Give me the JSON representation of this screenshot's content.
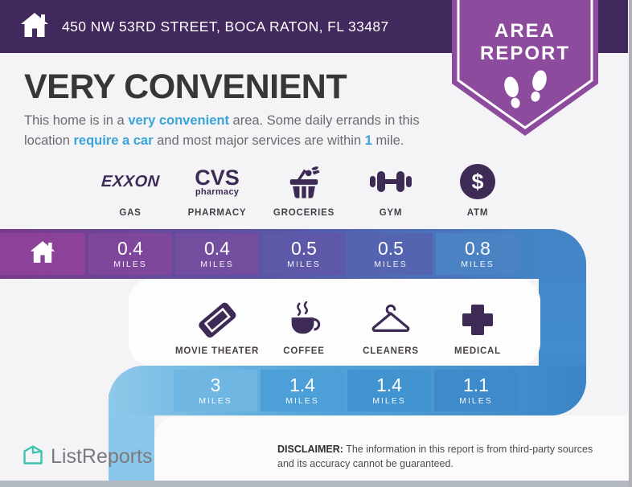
{
  "header": {
    "address": "450 NW 53RD STREET, BOCA RATON, FL 33487"
  },
  "badge": {
    "line1": "AREA",
    "line2": "REPORT"
  },
  "title": "VERY CONVENIENT",
  "intro_lines": [
    [
      {
        "t": "This home is in a ",
        "hl": false
      },
      {
        "t": "very convenient",
        "hl": true
      },
      {
        "t": " area. Some daily errands in this",
        "hl": false
      }
    ],
    [
      {
        "t": "location ",
        "hl": false
      },
      {
        "t": "require a car",
        "hl": true
      },
      {
        "t": " and most major services are within ",
        "hl": false
      },
      {
        "t": "1",
        "hl": true
      },
      {
        "t": " mile.",
        "hl": false
      }
    ]
  ],
  "rows": [
    {
      "items": [
        {
          "icon": "exxon-logo",
          "brand_lines": [
            "EXXON"
          ],
          "label": "GAS",
          "distance": "0.4",
          "unit": "MILES",
          "cell_color": "#7e479c"
        },
        {
          "icon": "cvs-logo",
          "brand_lines": [
            "CVS",
            "pharmacy"
          ],
          "label": "PHARMACY",
          "distance": "0.4",
          "unit": "MILES",
          "cell_color": "#734e9f"
        },
        {
          "icon": "groceries-icon",
          "label": "GROCERIES",
          "distance": "0.5",
          "unit": "MILES",
          "cell_color": "#5e58a9"
        },
        {
          "icon": "gym-icon",
          "label": "GYM",
          "distance": "0.5",
          "unit": "MILES",
          "cell_color": "#5464b1"
        },
        {
          "icon": "atm-icon",
          "symbol": "$",
          "label": "ATM",
          "distance": "0.8",
          "unit": "MILES",
          "cell_color": "#4a82c4"
        }
      ]
    },
    {
      "items": [
        {
          "icon": "movie-ticket-icon",
          "label": "MOVIE THEATER",
          "distance": "3",
          "unit": "MILES",
          "cell_color": "#6fb6e2"
        },
        {
          "icon": "coffee-icon",
          "label": "COFFEE",
          "distance": "1.4",
          "unit": "MILES",
          "cell_color": "#4d9fd7"
        },
        {
          "icon": "hanger-icon",
          "label": "CLEANERS",
          "distance": "1.4",
          "unit": "MILES",
          "cell_color": "#4294d0"
        },
        {
          "icon": "medical-cross-icon",
          "label": "MEDICAL",
          "distance": "1.1",
          "unit": "MILES",
          "cell_color": "#3e8aca"
        }
      ]
    }
  ],
  "footer": {
    "brand": "ListReports",
    "disclaimer_label": "DISCLAIMER:",
    "disclaimer_text": " The information in this report is from third-party sources and its accuracy cannot be guaranteed."
  },
  "colors": {
    "header_bg": "#42295d",
    "badge_purple": "#8d4b9e",
    "title_color": "#39363a",
    "body_text": "#6c6b70",
    "highlight_blue": "#3aa4d9",
    "icon_dark": "#3d2b56",
    "label_color": "#474147",
    "bar1_home_cell": "#8c4298",
    "bar1_track_start": "#7a3a8c",
    "bar1_track_mid": "#5a54a4",
    "bar1_track_end": "#4385c6",
    "bar2_track_start": "#8fc9ea",
    "bar2_track_mid": "#56a6da",
    "bar2_track_end": "#3b85c6",
    "right_strip_start": "#4486c7",
    "right_strip_end": "#3f8fcd",
    "left_strip": "#8bc7ea",
    "brand_teal": "#3cc4b1",
    "footer_text": "#7b797e"
  }
}
